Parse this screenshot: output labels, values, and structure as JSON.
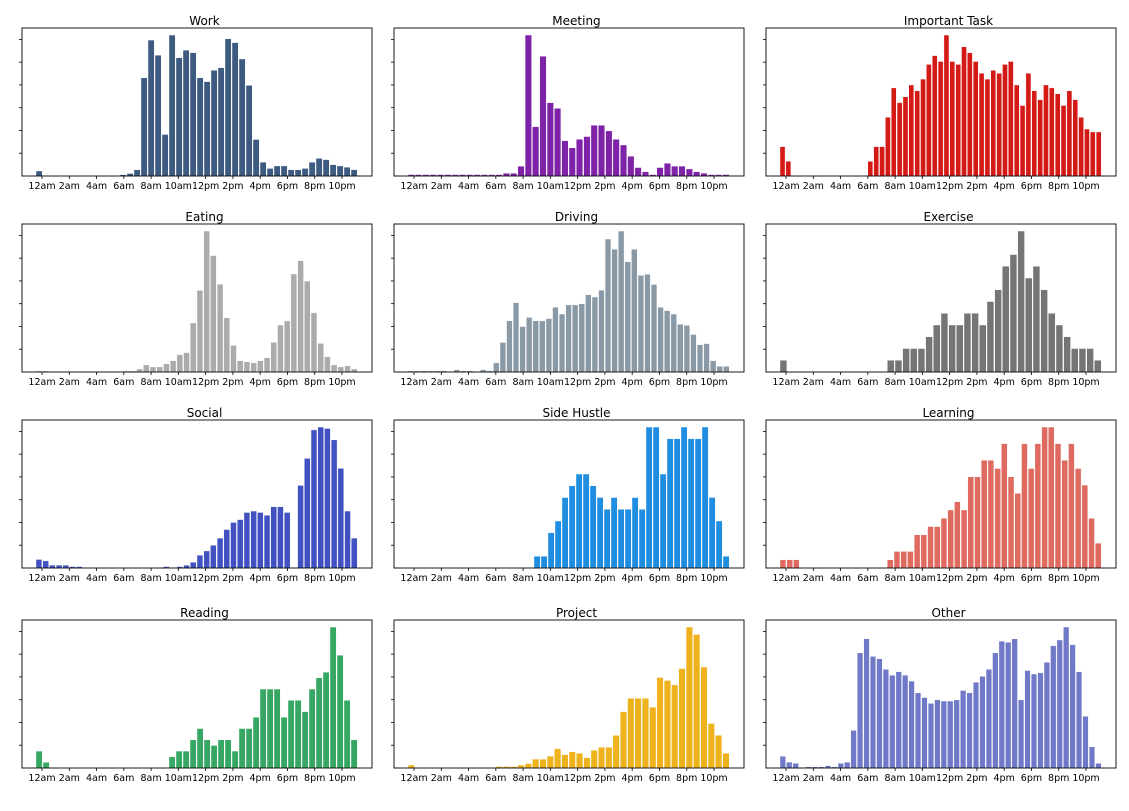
{
  "chart_data": [
    {
      "type": "bar",
      "title": "Work",
      "color": "#3d5a80",
      "x_tick_labels": [
        "12am",
        "2am",
        "4am",
        "6am",
        "8am",
        "10am",
        "12pm",
        "2pm",
        "4pm",
        "6pm",
        "8pm",
        "10pm"
      ],
      "values": [
        4,
        0,
        0,
        0,
        0,
        0,
        0,
        0,
        0,
        0,
        0,
        0,
        1,
        2,
        5,
        78,
        108,
        96,
        33,
        112,
        94,
        100,
        98,
        78,
        75,
        84,
        86,
        109,
        106,
        93,
        72,
        29,
        11,
        6,
        8,
        8,
        5,
        5,
        6,
        11,
        14,
        13,
        9,
        8,
        7,
        5
      ]
    },
    {
      "type": "bar",
      "title": "Meeting",
      "color": "#7e22a8",
      "x_tick_labels": [
        "12am",
        "2am",
        "4am",
        "6am",
        "8am",
        "10am",
        "12pm",
        "2pm",
        "4pm",
        "6pm",
        "8pm",
        "10pm"
      ],
      "values": [
        1,
        1,
        1,
        1,
        1,
        1,
        1,
        1,
        1,
        1,
        1,
        1,
        1,
        2,
        2,
        7,
        100,
        35,
        85,
        52,
        48,
        25,
        20,
        26,
        28,
        36,
        36,
        32,
        26,
        22,
        14,
        6,
        3,
        1,
        6,
        9,
        7,
        7,
        5,
        3,
        2,
        1,
        1,
        1
      ]
    },
    {
      "type": "bar",
      "title": "Important Task",
      "color": "#d41a16",
      "x_tick_labels": [
        "12am",
        "2am",
        "4am",
        "6am",
        "8am",
        "10am",
        "12pm",
        "2pm",
        "4pm",
        "6pm",
        "8pm",
        "10pm"
      ],
      "values": [
        1,
        0.5,
        0,
        0,
        0,
        0,
        0,
        0,
        0,
        0,
        0,
        0,
        0,
        0,
        0,
        0.5,
        1,
        1,
        2,
        3,
        2.5,
        2.7,
        3.1,
        2.9,
        3.3,
        3.8,
        4.1,
        3.9,
        4.8,
        3.9,
        3.8,
        4.4,
        4.2,
        3.9,
        3.5,
        3.3,
        3.6,
        3.5,
        3.8,
        3.9,
        3.1,
        2.4,
        3.5,
        2.9,
        2.6,
        3.1,
        3.0,
        2.8,
        2.4,
        2.9,
        2.6,
        2.0,
        1.6,
        1.5,
        1.5
      ]
    },
    {
      "type": "bar",
      "title": "Eating",
      "color": "#ababab",
      "x_tick_labels": [
        "12am",
        "2am",
        "4am",
        "6am",
        "8am",
        "10am",
        "12pm",
        "2pm",
        "4pm",
        "6pm",
        "8pm",
        "10pm"
      ],
      "values": [
        1,
        1,
        0,
        0,
        0,
        0,
        0,
        0,
        0,
        0,
        0,
        0,
        0,
        1,
        1,
        3,
        7,
        5,
        5,
        8,
        11,
        17,
        19,
        48,
        80,
        138,
        114,
        86,
        53,
        26,
        11,
        10,
        9,
        11,
        14,
        29,
        46,
        50,
        96,
        109,
        89,
        58,
        28,
        15,
        7,
        5,
        6,
        3
      ]
    },
    {
      "type": "bar",
      "title": "Driving",
      "color": "#8999a6",
      "x_tick_labels": [
        "12am",
        "2am",
        "4am",
        "6am",
        "8am",
        "10am",
        "12pm",
        "2pm",
        "4pm",
        "6pm",
        "8pm",
        "10pm"
      ],
      "values": [
        1,
        1,
        1,
        1,
        1,
        1,
        0,
        2,
        1,
        1,
        0,
        2,
        1,
        8,
        26,
        45,
        61,
        40,
        48,
        45,
        45,
        47,
        57,
        51,
        59,
        59,
        60,
        68,
        66,
        72,
        117,
        108,
        124,
        97,
        108,
        85,
        86,
        77,
        57,
        54,
        51,
        42,
        41,
        33,
        24,
        25,
        10,
        5,
        5
      ]
    },
    {
      "type": "bar",
      "title": "Exercise",
      "color": "#757575",
      "x_tick_labels": [
        "12am",
        "2am",
        "4am",
        "6am",
        "8am",
        "10am",
        "12pm",
        "2pm",
        "4pm",
        "6pm",
        "8pm",
        "10pm"
      ],
      "values": [
        1,
        0,
        0,
        0,
        0,
        0,
        0,
        0,
        0,
        0,
        0,
        0,
        0,
        0,
        1,
        1,
        2,
        2,
        2,
        3,
        4,
        5,
        4,
        4,
        5,
        5,
        4,
        6,
        7,
        9,
        10,
        12,
        8,
        9,
        7,
        5,
        4,
        3,
        2,
        2,
        2,
        1
      ]
    },
    {
      "type": "bar",
      "title": "Social",
      "color": "#4251c2",
      "x_tick_labels": [
        "12am",
        "2am",
        "4am",
        "6am",
        "8am",
        "10am",
        "12pm",
        "2pm",
        "4pm",
        "6pm",
        "8pm",
        "10pm"
      ],
      "values": [
        6,
        5,
        2,
        2,
        2,
        1,
        1,
        0,
        0,
        0,
        0,
        0,
        0,
        0,
        0,
        0,
        0,
        0,
        0,
        1,
        0,
        1,
        2,
        4,
        9,
        12,
        16,
        21,
        27,
        32,
        34,
        39,
        40,
        39,
        37,
        43,
        43,
        39,
        0,
        58,
        77,
        97,
        99,
        98,
        90,
        70,
        40,
        21
      ]
    },
    {
      "type": "bar",
      "title": "Side Hustle",
      "color": "#1f8ee0",
      "x_tick_labels": [
        "12am",
        "2am",
        "4am",
        "6am",
        "8am",
        "10am",
        "12pm",
        "2pm",
        "4pm",
        "6pm",
        "8pm",
        "10pm"
      ],
      "values": [
        0,
        0,
        0,
        0,
        0,
        0,
        0,
        0,
        0,
        0,
        0,
        0,
        0,
        0,
        0,
        0,
        0,
        0,
        1,
        1,
        3,
        4,
        6,
        7,
        8,
        8,
        7,
        6,
        5,
        6,
        5,
        5,
        6,
        5,
        12,
        12,
        8,
        11,
        11,
        12,
        11,
        11,
        12,
        6,
        4,
        1
      ]
    },
    {
      "type": "bar",
      "title": "Learning",
      "color": "#df6a5f",
      "x_tick_labels": [
        "12am",
        "2am",
        "4am",
        "6am",
        "8am",
        "10am",
        "12pm",
        "2pm",
        "4pm",
        "6pm",
        "8pm",
        "10pm"
      ],
      "values": [
        1,
        1,
        1,
        0,
        0,
        0,
        0,
        0,
        0,
        0,
        0,
        0,
        0,
        0,
        0,
        0,
        1,
        2,
        2,
        2,
        4,
        4,
        5,
        5,
        6,
        7,
        8,
        7,
        11,
        11,
        13,
        13,
        12,
        15,
        11,
        9,
        15,
        12,
        15,
        17,
        17,
        15,
        13,
        15,
        12,
        10,
        6,
        3
      ]
    },
    {
      "type": "bar",
      "title": "Reading",
      "color": "#36a863",
      "x_tick_labels": [
        "12am",
        "2am",
        "4am",
        "6am",
        "8am",
        "10am",
        "12pm",
        "2pm",
        "4pm",
        "6pm",
        "8pm",
        "10pm"
      ],
      "values": [
        3,
        1,
        0,
        0,
        0,
        0,
        0,
        0,
        0,
        0,
        0,
        0,
        0,
        0,
        0,
        0,
        0,
        0,
        0,
        2,
        3,
        3,
        5,
        7,
        5,
        4,
        5,
        5,
        3,
        7,
        7,
        9,
        14,
        14,
        14,
        9,
        12,
        12,
        10,
        14,
        16,
        17,
        25,
        20,
        12,
        5
      ]
    },
    {
      "type": "bar",
      "title": "Project",
      "color": "#eeb21c",
      "x_tick_labels": [
        "12am",
        "2am",
        "4am",
        "6am",
        "8am",
        "10am",
        "12pm",
        "2pm",
        "4pm",
        "6pm",
        "8pm",
        "10pm"
      ],
      "values": [
        2,
        0,
        0,
        0,
        0,
        0,
        0,
        0,
        0,
        0,
        0,
        0,
        1,
        1,
        1,
        2,
        3,
        6,
        6,
        8,
        13,
        9,
        11,
        10,
        7,
        12,
        14,
        14,
        22,
        38,
        47,
        47,
        47,
        41,
        61,
        59,
        56,
        67,
        95,
        90,
        68,
        30,
        22,
        10
      ]
    },
    {
      "type": "bar",
      "title": "Other",
      "color": "#6f79c7",
      "x_tick_labels": [
        "12am",
        "2am",
        "4am",
        "6am",
        "8am",
        "10am",
        "12pm",
        "2pm",
        "4pm",
        "6pm",
        "8pm",
        "10pm"
      ],
      "values": [
        10,
        5,
        4,
        0,
        1,
        1,
        1,
        2,
        1,
        4,
        5,
        32,
        98,
        110,
        95,
        93,
        84,
        79,
        82,
        79,
        74,
        64,
        60,
        55,
        58,
        57,
        57,
        58,
        66,
        64,
        73,
        78,
        84,
        98,
        108,
        107,
        110,
        58,
        83,
        80,
        81,
        90,
        104,
        109,
        120,
        105,
        82,
        44,
        18,
        4
      ]
    }
  ]
}
